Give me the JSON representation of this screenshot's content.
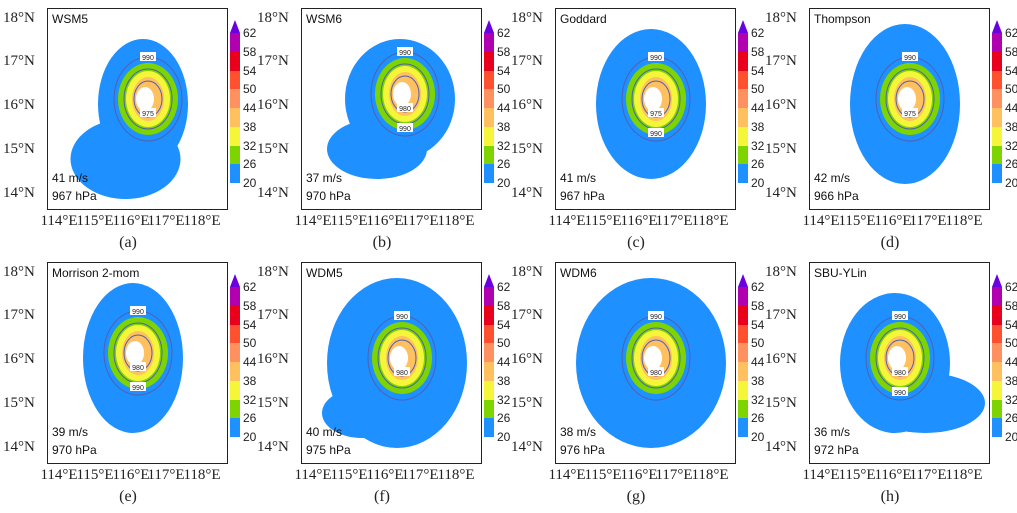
{
  "axes": {
    "lat_labels": [
      "18°N",
      "17°N",
      "16°N",
      "15°N",
      "14°N"
    ],
    "lon_labels": [
      "114°E",
      "115°E",
      "116°E",
      "117°E",
      "118°E"
    ]
  },
  "colorbar": {
    "labels": [
      "62",
      "58",
      "54",
      "50",
      "44",
      "38",
      "32",
      "26",
      "20"
    ],
    "colors": [
      "#1e90ff",
      "#7ed400",
      "#f5f53a",
      "#ffc060",
      "#ff9060",
      "#ff5030",
      "#e8001c",
      "#b000b0"
    ],
    "extend_color": "#6a00e0"
  },
  "panels": [
    {
      "scheme": "WSM5",
      "wind": "41 m/s",
      "pressure": "967 hPa",
      "caption": "(a)",
      "contour_labels": [
        "990",
        "975"
      ]
    },
    {
      "scheme": "WSM6",
      "wind": "37 m/s",
      "pressure": "970 hPa",
      "caption": "(b)",
      "contour_labels": [
        "990",
        "980",
        "990"
      ]
    },
    {
      "scheme": "Goddard",
      "wind": "41 m/s",
      "pressure": "967 hPa",
      "caption": "(c)",
      "contour_labels": [
        "990",
        "975",
        "990"
      ]
    },
    {
      "scheme": "Thompson",
      "wind": "42 m/s",
      "pressure": "966 hPa",
      "caption": "(d)",
      "contour_labels": [
        "990",
        "975"
      ]
    },
    {
      "scheme": "Morrison 2-mom",
      "wind": "39 m/s",
      "pressure": "970 hPa",
      "caption": "(e)",
      "contour_labels": [
        "990",
        "980",
        "990"
      ]
    },
    {
      "scheme": "WDM5",
      "wind": "40 m/s",
      "pressure": "975 hPa",
      "caption": "(f)",
      "contour_labels": [
        "990",
        "980"
      ]
    },
    {
      "scheme": "WDM6",
      "wind": "38 m/s",
      "pressure": "976 hPa",
      "caption": "(g)",
      "contour_labels": [
        "990",
        "980"
      ]
    },
    {
      "scheme": "SBU-YLin",
      "wind": "36 m/s",
      "pressure": "972 hPa",
      "caption": "(h)",
      "contour_labels": [
        "990",
        "980",
        "990"
      ]
    }
  ]
}
